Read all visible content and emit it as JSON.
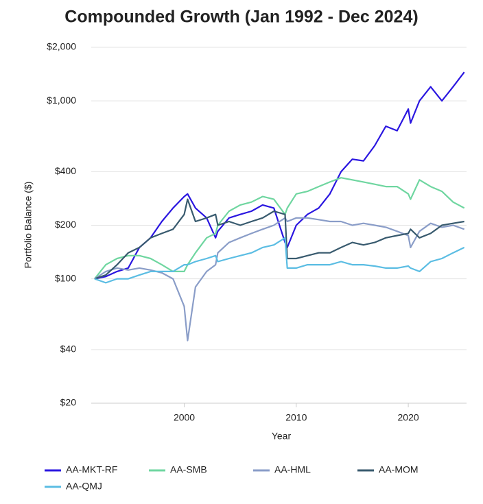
{
  "chart_data": {
    "type": "line",
    "title": "Compounded Growth (Jan 1992 - Dec 2024)",
    "x_label": "Year",
    "y_label": "Portfolio Balance ($)",
    "log_scale": true,
    "grid": true,
    "legend": "bottom",
    "xlim": [
      1991.7,
      2025.2
    ],
    "xticks": [
      2000,
      2010,
      2020
    ],
    "ylim": [
      20,
      2000
    ],
    "yticks": [
      {
        "value": 20,
        "label": "$20"
      },
      {
        "value": 40,
        "label": "$40"
      },
      {
        "value": 100,
        "label": "$100"
      },
      {
        "value": 200,
        "label": "$200"
      },
      {
        "value": 400,
        "label": "$400"
      },
      {
        "value": 1000,
        "label": "$1,000"
      },
      {
        "value": 2000,
        "label": "$2,000"
      }
    ],
    "x": [
      1992,
      1993,
      1994,
      1995,
      1996,
      1997,
      1998,
      1999,
      2000,
      2000.3,
      2001,
      2002,
      2002.8,
      2003,
      2004,
      2005,
      2006,
      2007,
      2008,
      2009,
      2009.2,
      2010,
      2011,
      2012,
      2013,
      2014,
      2015,
      2016,
      2017,
      2018,
      2019,
      2020,
      2020.2,
      2021,
      2022,
      2023,
      2024,
      2025
    ],
    "series": [
      {
        "name": "AA-MKT-RF",
        "color": "#2a16e0",
        "values": [
          100,
          103,
          110,
          115,
          150,
          170,
          210,
          250,
          290,
          300,
          250,
          220,
          170,
          185,
          220,
          230,
          240,
          260,
          250,
          160,
          150,
          200,
          230,
          250,
          300,
          400,
          470,
          460,
          560,
          720,
          680,
          900,
          750,
          1000,
          1200,
          1000,
          1200,
          1450
        ]
      },
      {
        "name": "AA-SMB",
        "color": "#6fd6a0",
        "values": [
          100,
          120,
          130,
          135,
          135,
          130,
          120,
          110,
          110,
          120,
          140,
          170,
          180,
          200,
          240,
          260,
          270,
          290,
          280,
          230,
          250,
          300,
          310,
          330,
          350,
          370,
          360,
          350,
          340,
          330,
          330,
          300,
          280,
          360,
          330,
          310,
          270,
          250
        ]
      },
      {
        "name": "AA-HML",
        "color": "#8a9dc8",
        "values": [
          100,
          110,
          115,
          112,
          115,
          112,
          108,
          100,
          70,
          45,
          90,
          110,
          120,
          140,
          160,
          170,
          180,
          190,
          200,
          220,
          210,
          220,
          220,
          215,
          210,
          210,
          200,
          205,
          200,
          195,
          185,
          175,
          150,
          185,
          205,
          195,
          200,
          190
        ]
      },
      {
        "name": "AA-MOM",
        "color": "#385a6e",
        "values": [
          100,
          105,
          120,
          140,
          150,
          170,
          180,
          190,
          230,
          280,
          210,
          220,
          230,
          200,
          210,
          200,
          210,
          220,
          240,
          230,
          130,
          130,
          135,
          140,
          140,
          150,
          160,
          155,
          160,
          170,
          175,
          180,
          190,
          170,
          180,
          200,
          205,
          210
        ]
      },
      {
        "name": "AA-QMJ",
        "color": "#5bbde3",
        "values": [
          100,
          95,
          100,
          100,
          105,
          110,
          110,
          110,
          120,
          120,
          125,
          130,
          135,
          125,
          130,
          135,
          140,
          150,
          155,
          170,
          115,
          115,
          120,
          120,
          120,
          125,
          120,
          120,
          118,
          115,
          115,
          118,
          115,
          110,
          125,
          130,
          140,
          150
        ]
      }
    ]
  }
}
